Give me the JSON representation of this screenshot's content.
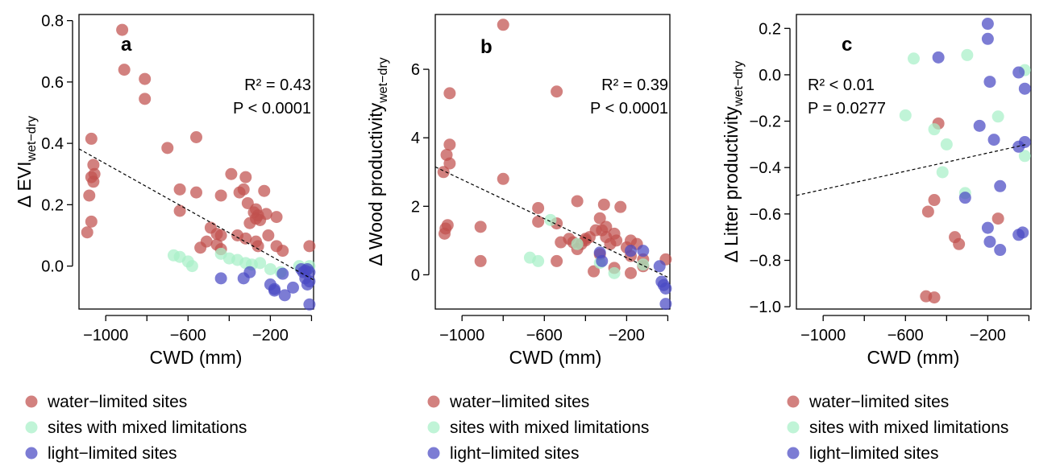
{
  "colors": {
    "water-limited": "#c0504d",
    "mixed": "#a8f0c8",
    "light-limited": "#4a4ac4"
  },
  "legend": [
    {
      "key": "water-limited",
      "label": "water−limited sites"
    },
    {
      "key": "mixed",
      "label": "sites with mixed limitations"
    },
    {
      "key": "light-limited",
      "label": "light−limited sites"
    }
  ],
  "chart_data": [
    {
      "type": "scatter",
      "panel": "a",
      "xlabel": "CWD (mm)",
      "ylabel_main": "Δ EVI",
      "ylabel_sub": "wet−dry",
      "xlim": [
        -1130,
        10
      ],
      "ylim": [
        -0.14,
        0.82
      ],
      "xticks": [
        -1000,
        -600,
        -200
      ],
      "xtick_labels": [
        "−1000",
        "−600",
        "−200"
      ],
      "xminor": [
        -800,
        -400,
        0
      ],
      "yticks": [
        0.0,
        0.2,
        0.4,
        0.6,
        0.8
      ],
      "ytick_labels": [
        "0.0",
        "0.2",
        "0.4",
        "0.6",
        "0.8"
      ],
      "annotation": [
        "R² = 0.43",
        "P < 0.0001"
      ],
      "trend": {
        "x": [
          -1130,
          10
        ],
        "y": [
          0.382,
          -0.045
        ]
      },
      "series": [
        {
          "name": "water−limited sites",
          "key": "water-limited",
          "points": [
            [
              -920,
              0.77
            ],
            [
              -910,
              0.64
            ],
            [
              -810,
              0.61
            ],
            [
              -810,
              0.545
            ],
            [
              -1070,
              0.415
            ],
            [
              -1060,
              0.33
            ],
            [
              -1055,
              0.3
            ],
            [
              -1070,
              0.29
            ],
            [
              -1060,
              0.275
            ],
            [
              -1080,
              0.23
            ],
            [
              -1070,
              0.145
            ],
            [
              -1090,
              0.11
            ],
            [
              -700,
              0.385
            ],
            [
              -560,
              0.42
            ],
            [
              -640,
              0.25
            ],
            [
              -560,
              0.24
            ],
            [
              -640,
              0.18
            ],
            [
              -440,
              0.23
            ],
            [
              -490,
              0.125
            ],
            [
              -460,
              0.105
            ],
            [
              -440,
              0.1
            ],
            [
              -510,
              0.08
            ],
            [
              -460,
              0.07
            ],
            [
              -540,
              0.06
            ],
            [
              -440,
              0.055
            ],
            [
              -390,
              0.3
            ],
            [
              -320,
              0.29
            ],
            [
              -350,
              0.24
            ],
            [
              -330,
              0.25
            ],
            [
              -310,
              0.205
            ],
            [
              -230,
              0.245
            ],
            [
              -270,
              0.185
            ],
            [
              -280,
              0.175
            ],
            [
              -260,
              0.165
            ],
            [
              -270,
              0.155
            ],
            [
              -250,
              0.15
            ],
            [
              -300,
              0.14
            ],
            [
              -220,
              0.17
            ],
            [
              -170,
              0.16
            ],
            [
              -360,
              0.1
            ],
            [
              -320,
              0.09
            ],
            [
              -270,
              0.08
            ],
            [
              -260,
              0.065
            ],
            [
              -210,
              0.1
            ],
            [
              -170,
              0.065
            ],
            [
              -140,
              0.05
            ],
            [
              -10,
              0.065
            ]
          ]
        },
        {
          "name": "sites with mixed limitations",
          "key": "mixed",
          "points": [
            [
              -670,
              0.035
            ],
            [
              -640,
              0.03
            ],
            [
              -600,
              0.015
            ],
            [
              -580,
              0.0
            ],
            [
              -440,
              0.04
            ],
            [
              -400,
              0.025
            ],
            [
              -360,
              0.02
            ],
            [
              -320,
              0.01
            ],
            [
              -290,
              0.005
            ],
            [
              -250,
              0.01
            ],
            [
              -200,
              -0.01
            ],
            [
              -150,
              -0.02
            ],
            [
              -60,
              0.0
            ],
            [
              -10,
              0.0
            ],
            [
              -20,
              -0.01
            ]
          ]
        },
        {
          "name": "light−limited sites",
          "key": "light-limited",
          "points": [
            [
              -440,
              -0.04
            ],
            [
              -330,
              -0.04
            ],
            [
              -300,
              -0.02
            ],
            [
              -200,
              -0.06
            ],
            [
              -180,
              -0.075
            ],
            [
              -180,
              -0.08
            ],
            [
              -140,
              -0.025
            ],
            [
              -130,
              -0.095
            ],
            [
              -90,
              -0.07
            ],
            [
              -50,
              -0.01
            ],
            [
              -40,
              -0.02
            ],
            [
              -30,
              -0.015
            ],
            [
              -20,
              -0.01
            ],
            [
              -10,
              -0.02
            ],
            [
              -30,
              -0.04
            ],
            [
              -20,
              -0.06
            ],
            [
              -10,
              -0.05
            ],
            [
              -10,
              -0.125
            ]
          ]
        }
      ]
    },
    {
      "type": "scatter",
      "panel": "b",
      "xlabel": "CWD (mm)",
      "ylabel_main": "Δ Wood productivity",
      "ylabel_sub": "wet−dry",
      "xlim": [
        -1130,
        10
      ],
      "ylim": [
        -1.0,
        7.6
      ],
      "xticks": [
        -1000,
        -600,
        -200
      ],
      "xtick_labels": [
        "−1000",
        "−600",
        "−200"
      ],
      "xminor": [
        -800,
        -400,
        0
      ],
      "yticks": [
        0,
        2,
        4,
        6
      ],
      "ytick_labels": [
        "0",
        "2",
        "4",
        "6"
      ],
      "annotation": [
        "R² = 0.39",
        "P < 0.0001"
      ],
      "trend": {
        "x": [
          -1130,
          10
        ],
        "y": [
          3.15,
          -0.1
        ]
      },
      "series": [
        {
          "name": "water−limited sites",
          "key": "water-limited",
          "points": [
            [
              -800,
              7.3
            ],
            [
              -1060,
              5.3
            ],
            [
              -540,
              5.35
            ],
            [
              -1060,
              3.8
            ],
            [
              -1075,
              3.5
            ],
            [
              -1060,
              3.25
            ],
            [
              -1090,
              3.0
            ],
            [
              -800,
              2.8
            ],
            [
              -1070,
              1.45
            ],
            [
              -1080,
              1.35
            ],
            [
              -1085,
              1.2
            ],
            [
              -910,
              1.4
            ],
            [
              -910,
              0.4
            ],
            [
              -630,
              1.95
            ],
            [
              -630,
              1.55
            ],
            [
              -540,
              1.5
            ],
            [
              -440,
              2.15
            ],
            [
              -480,
              1.05
            ],
            [
              -460,
              0.95
            ],
            [
              -420,
              0.9
            ],
            [
              -400,
              1.0
            ],
            [
              -520,
              0.95
            ],
            [
              -540,
              0.4
            ],
            [
              -440,
              0.75
            ],
            [
              -310,
              2.05
            ],
            [
              -230,
              1.98
            ],
            [
              -330,
              1.65
            ],
            [
              -320,
              1.3
            ],
            [
              -300,
              1.4
            ],
            [
              -350,
              1.3
            ],
            [
              -380,
              1.1
            ],
            [
              -400,
              1.05
            ],
            [
              -300,
              1.1
            ],
            [
              -260,
              1.2
            ],
            [
              -250,
              1.0
            ],
            [
              -180,
              1.0
            ],
            [
              -200,
              0.8
            ],
            [
              -150,
              0.9
            ],
            [
              -180,
              0.55
            ],
            [
              -120,
              0.45
            ],
            [
              -280,
              0.9
            ],
            [
              -330,
              0.6
            ],
            [
              -360,
              0.1
            ],
            [
              -260,
              0.2
            ],
            [
              -180,
              0.05
            ],
            [
              -120,
              0.25
            ],
            [
              -10,
              0.45
            ]
          ]
        },
        {
          "name": "sites with mixed limitations",
          "key": "mixed",
          "points": [
            [
              -670,
              0.5
            ],
            [
              -630,
              0.4
            ],
            [
              -570,
              1.6
            ],
            [
              -440,
              0.9
            ],
            [
              -330,
              0.35
            ],
            [
              -260,
              0.05
            ],
            [
              -120,
              0.3
            ]
          ]
        },
        {
          "name": "light−limited sites",
          "key": "light-limited",
          "points": [
            [
              -330,
              0.65
            ],
            [
              -320,
              0.4
            ],
            [
              -180,
              0.7
            ],
            [
              -120,
              0.7
            ],
            [
              -40,
              0.25
            ],
            [
              -30,
              -0.2
            ],
            [
              -20,
              -0.3
            ],
            [
              -10,
              -0.4
            ],
            [
              -10,
              -0.85
            ]
          ]
        }
      ]
    },
    {
      "type": "scatter",
      "panel": "c",
      "xlabel": "CWD (mm)",
      "ylabel_main": "Δ Litter productivity",
      "ylabel_sub": "wet−dry",
      "xlim": [
        -1130,
        10
      ],
      "ylim": [
        -1.01,
        0.26
      ],
      "xticks": [
        -1000,
        -600,
        -200
      ],
      "xtick_labels": [
        "−1000",
        "−600",
        "−200"
      ],
      "xminor": [
        -800,
        -400,
        0
      ],
      "yticks": [
        -1.0,
        -0.8,
        -0.6,
        -0.4,
        -0.2,
        0.0,
        0.2
      ],
      "ytick_labels": [
        "−1.0",
        "−0.8",
        "−0.6",
        "−0.4",
        "−0.2",
        "0.0",
        "0.2"
      ],
      "annotation": [
        "R² < 0.01",
        "P = 0.0277"
      ],
      "trend": {
        "x": [
          -1130,
          -10
        ],
        "y": [
          -0.52,
          -0.3
        ]
      },
      "series": [
        {
          "name": "water−limited sites",
          "key": "water-limited",
          "points": [
            [
              -440,
              -0.21
            ],
            [
              -460,
              -0.54
            ],
            [
              -490,
              -0.59
            ],
            [
              -360,
              -0.7
            ],
            [
              -340,
              -0.73
            ],
            [
              -150,
              -0.62
            ],
            [
              -500,
              -0.955
            ],
            [
              -460,
              -0.96
            ]
          ]
        },
        {
          "name": "sites with mixed limitations",
          "key": "mixed",
          "points": [
            [
              -560,
              0.07
            ],
            [
              -300,
              0.085
            ],
            [
              -20,
              0.02
            ],
            [
              -600,
              -0.175
            ],
            [
              -460,
              -0.235
            ],
            [
              -150,
              -0.18
            ],
            [
              -400,
              -0.3
            ],
            [
              -420,
              -0.42
            ],
            [
              -310,
              -0.51
            ],
            [
              -20,
              -0.35
            ]
          ]
        },
        {
          "name": "light−limited sites",
          "key": "light-limited",
          "points": [
            [
              -200,
              0.22
            ],
            [
              -200,
              0.155
            ],
            [
              -440,
              0.075
            ],
            [
              -190,
              -0.03
            ],
            [
              -50,
              0.01
            ],
            [
              -20,
              -0.06
            ],
            [
              -240,
              -0.22
            ],
            [
              -170,
              -0.28
            ],
            [
              -20,
              -0.29
            ],
            [
              -50,
              -0.31
            ],
            [
              -140,
              -0.48
            ],
            [
              -310,
              -0.53
            ],
            [
              -200,
              -0.66
            ],
            [
              -190,
              -0.72
            ],
            [
              -140,
              -0.755
            ],
            [
              -50,
              -0.69
            ],
            [
              -30,
              -0.68
            ]
          ]
        }
      ]
    }
  ]
}
